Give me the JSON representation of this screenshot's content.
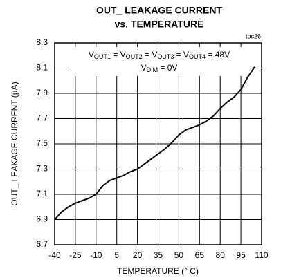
{
  "chart_data": {
    "type": "line",
    "title": [
      "OUT_ LEAKAGE CURRENT",
      "vs. TEMPERATURE"
    ],
    "corner_label": "toc26",
    "annotation": [
      [
        {
          "t": "V"
        },
        {
          "s": "OUT1"
        },
        {
          "t": " = V"
        },
        {
          "s": "OUT2"
        },
        {
          "t": " = V"
        },
        {
          "s": "OUT3"
        },
        {
          "t": " = V"
        },
        {
          "s": "OUT4"
        },
        {
          "t": " = 48V"
        }
      ],
      [
        {
          "t": "V"
        },
        {
          "s": "DIM"
        },
        {
          "t": " = 0V"
        }
      ]
    ],
    "xlabel": "TEMPERATURE (° C)",
    "ylabel": "OUT_ LEAKAGE CURRENT (µA)",
    "x": [
      -40,
      -35,
      -30,
      -25,
      -20,
      -15,
      -10,
      -5,
      0,
      5,
      10,
      15,
      20,
      25,
      30,
      35,
      40,
      45,
      50,
      55,
      60,
      65,
      70,
      75,
      80,
      85,
      90,
      95,
      100,
      105
    ],
    "series": [
      {
        "color": "#000000",
        "values": [
          6.9,
          6.96,
          7.0,
          7.03,
          7.05,
          7.07,
          7.1,
          7.17,
          7.21,
          7.23,
          7.25,
          7.28,
          7.3,
          7.34,
          7.38,
          7.42,
          7.46,
          7.51,
          7.57,
          7.61,
          7.63,
          7.65,
          7.68,
          7.72,
          7.78,
          7.83,
          7.87,
          7.93,
          8.03,
          8.11
        ]
      }
    ],
    "xlim": [
      -40,
      110
    ],
    "xticks": [
      -40,
      -25,
      -10,
      5,
      20,
      35,
      50,
      65,
      80,
      95,
      110
    ],
    "ylim": [
      6.7,
      8.3
    ],
    "yticks": [
      6.7,
      6.9,
      7.1,
      7.3,
      7.5,
      7.7,
      7.9,
      8.1,
      8.3
    ],
    "grid": true
  }
}
